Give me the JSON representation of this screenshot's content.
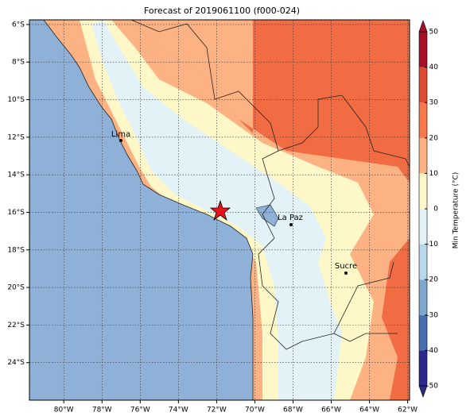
{
  "title": "Forecast of 2019061100 (f000-024)",
  "map": {
    "xlim": [
      -81.8,
      -61.9
    ],
    "ylim": [
      -26,
      -5.75
    ],
    "xticks": [
      {
        "value": -80,
        "label": "80°W"
      },
      {
        "value": -78,
        "label": "78°W"
      },
      {
        "value": -76,
        "label": "76°W"
      },
      {
        "value": -74,
        "label": "74°W"
      },
      {
        "value": -72,
        "label": "72°W"
      },
      {
        "value": -70,
        "label": "70°W"
      },
      {
        "value": -68,
        "label": "68°W"
      },
      {
        "value": -66,
        "label": "66°W"
      },
      {
        "value": -64,
        "label": "64°W"
      },
      {
        "value": -62,
        "label": "62°W"
      }
    ],
    "yticks": [
      {
        "value": -6,
        "label": "6°S"
      },
      {
        "value": -8,
        "label": "8°S"
      },
      {
        "value": -10,
        "label": "10°S"
      },
      {
        "value": -12,
        "label": "12°S"
      },
      {
        "value": -14,
        "label": "14°S"
      },
      {
        "value": -16,
        "label": "16°S"
      },
      {
        "value": -18,
        "label": "18°S"
      },
      {
        "value": -20,
        "label": "20°S"
      },
      {
        "value": -22,
        "label": "22°S"
      },
      {
        "value": -24,
        "label": "24°S"
      }
    ],
    "grid": true,
    "cities": [
      "Lima",
      "La Paz",
      "Sucre"
    ]
  },
  "colorbar": {
    "label": "Min Temperature (°C)",
    "ticks": [
      -50,
      -40,
      -30,
      -20,
      -10,
      0,
      10,
      20,
      30,
      40,
      50
    ],
    "colors": [
      "#2b2a8c",
      "#4a6fb0",
      "#7fa6cf",
      "#b9d8ea",
      "#e2f2f7",
      "#fef8c8",
      "#fdb283",
      "#f7784a",
      "#e04b34",
      "#a8102a"
    ]
  }
}
